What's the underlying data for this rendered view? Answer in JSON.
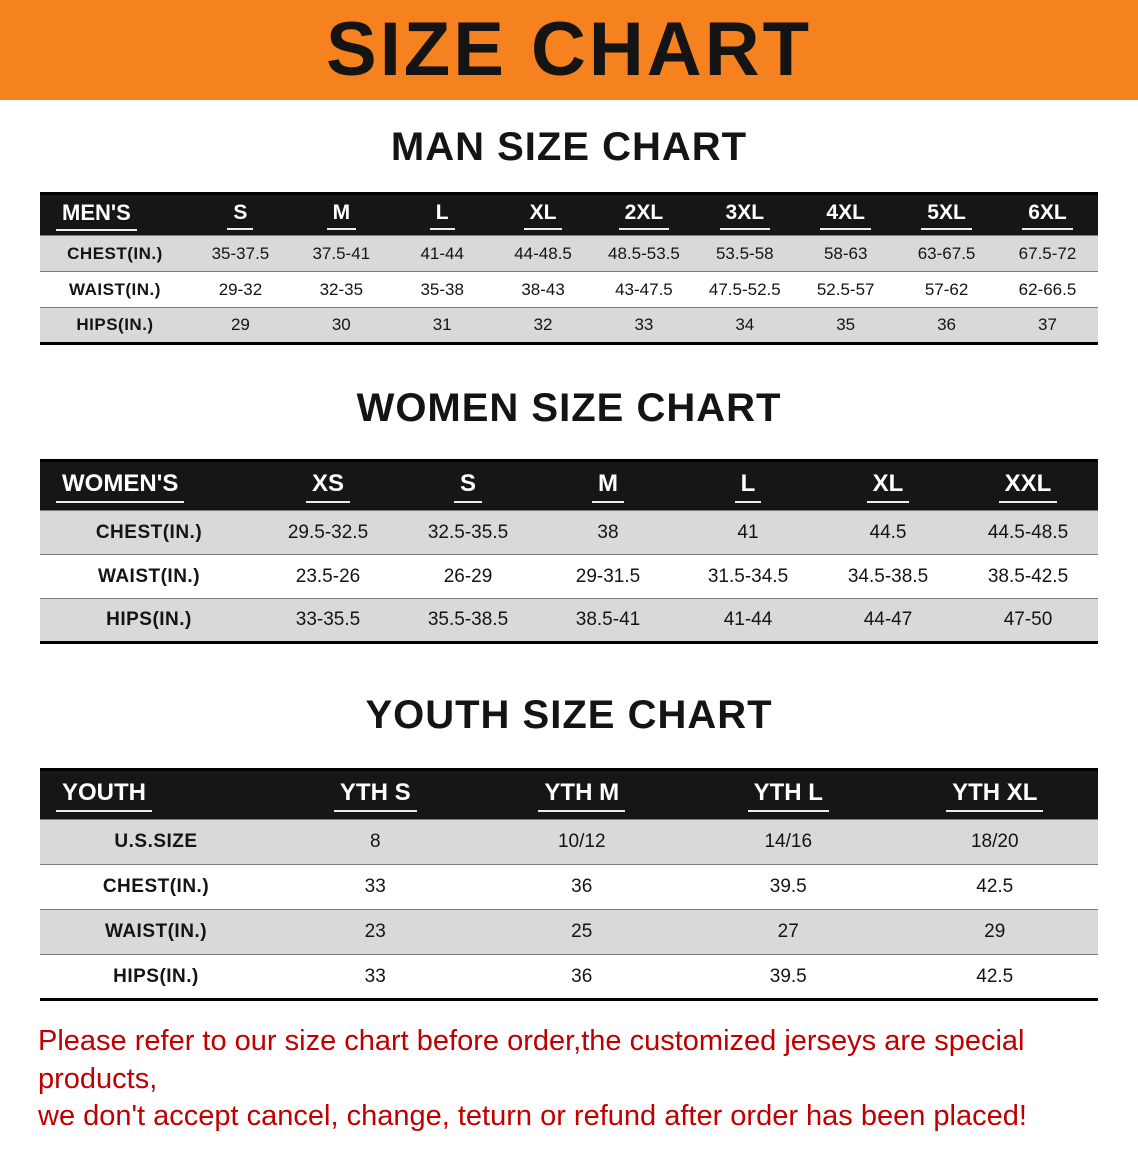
{
  "colors": {
    "banner_bg": "#F5821E",
    "header_bg": "#161616",
    "stripe": "#D9D9D9",
    "footer_text": "#C00000"
  },
  "banner": {
    "title": "SIZE CHART"
  },
  "sections": [
    {
      "id": "mens",
      "heading": "MAN SIZE CHART",
      "table": {
        "header": [
          "MEN'S",
          "S",
          "M",
          "L",
          "XL",
          "2XL",
          "3XL",
          "4XL",
          "5XL",
          "6XL"
        ],
        "rows": [
          {
            "label": "CHEST(IN.)",
            "values": [
              "35-37.5",
              "37.5-41",
              "41-44",
              "44-48.5",
              "48.5-53.5",
              "53.5-58",
              "58-63",
              "63-67.5",
              "67.5-72"
            ]
          },
          {
            "label": "WAIST(IN.)",
            "values": [
              "29-32",
              "32-35",
              "35-38",
              "38-43",
              "43-47.5",
              "47.5-52.5",
              "52.5-57",
              "57-62",
              "62-66.5"
            ]
          },
          {
            "label": "HIPS(IN.)",
            "values": [
              "29",
              "30",
              "31",
              "32",
              "33",
              "34",
              "35",
              "36",
              "37"
            ]
          }
        ]
      }
    },
    {
      "id": "womens",
      "heading": "WOMEN SIZE CHART",
      "table": {
        "header": [
          "WOMEN'S",
          "XS",
          "S",
          "M",
          "L",
          "XL",
          "XXL"
        ],
        "rows": [
          {
            "label": "CHEST(IN.)",
            "values": [
              "29.5-32.5",
              "32.5-35.5",
              "38",
              "41",
              "44.5",
              "44.5-48.5"
            ]
          },
          {
            "label": "WAIST(IN.)",
            "values": [
              "23.5-26",
              "26-29",
              "29-31.5",
              "31.5-34.5",
              "34.5-38.5",
              "38.5-42.5"
            ]
          },
          {
            "label": "HIPS(IN.)",
            "values": [
              "33-35.5",
              "35.5-38.5",
              "38.5-41",
              "41-44",
              "44-47",
              "47-50"
            ]
          }
        ]
      }
    },
    {
      "id": "youth",
      "heading": "YOUTH SIZE CHART",
      "table": {
        "header": [
          "YOUTH",
          "YTH S",
          "YTH M",
          "YTH L",
          "YTH XL"
        ],
        "rows": [
          {
            "label": "U.S.SIZE",
            "values": [
              "8",
              "10/12",
              "14/16",
              "18/20"
            ]
          },
          {
            "label": "CHEST(IN.)",
            "values": [
              "33",
              "36",
              "39.5",
              "42.5"
            ]
          },
          {
            "label": "WAIST(IN.)",
            "values": [
              "23",
              "25",
              "27",
              "29"
            ]
          },
          {
            "label": "HIPS(IN.)",
            "values": [
              "33",
              "36",
              "39.5",
              "42.5"
            ]
          }
        ]
      }
    }
  ],
  "footer": {
    "line1": "Please refer to our size chart before order,the customized jerseys are special products,",
    "line2": "we don't accept cancel, change, teturn or refund after order has been placed!"
  }
}
